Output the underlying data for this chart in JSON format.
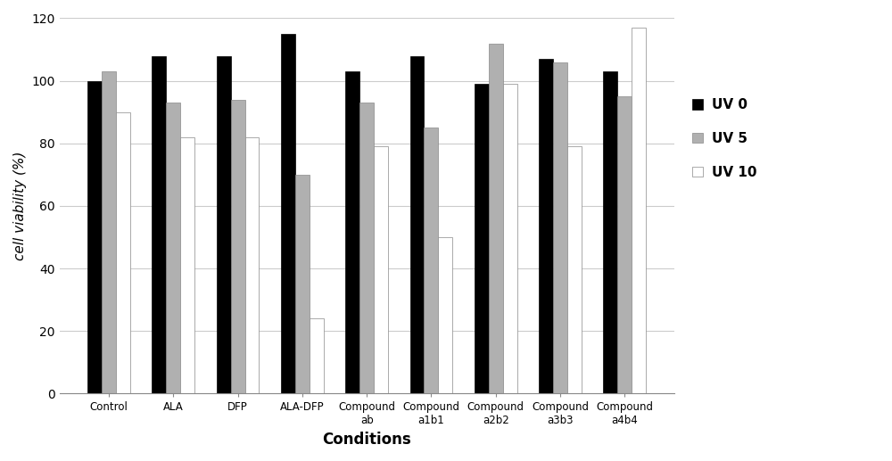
{
  "categories": [
    "Control",
    "ALA",
    "DFP",
    "ALA-DFP",
    "Compound\nab",
    "Compound\na1b1",
    "Compound\na2b2",
    "Compound\na3b3",
    "Compound\na4b4"
  ],
  "uv0": [
    100,
    108,
    108,
    115,
    103,
    108,
    99,
    107,
    103
  ],
  "uv5": [
    103,
    93,
    94,
    70,
    93,
    85,
    112,
    106,
    95
  ],
  "uv10": [
    90,
    82,
    82,
    24,
    79,
    50,
    99,
    79,
    117
  ],
  "uv0_color": "#000000",
  "uv5_color": "#b0b0b0",
  "uv10_color": "#ffffff",
  "uv10_edgecolor": "#999999",
  "ylabel": "cell viability (%)",
  "xlabel": "Conditions",
  "ylim": [
    0,
    120
  ],
  "yticks": [
    0,
    20,
    40,
    60,
    80,
    100,
    120
  ],
  "legend_labels": [
    "UV 0",
    "UV 5",
    "UV 10"
  ],
  "bar_width": 0.22,
  "background_color": "#ffffff",
  "plot_bg_color": "#ffffff",
  "grid_color": "#cccccc"
}
